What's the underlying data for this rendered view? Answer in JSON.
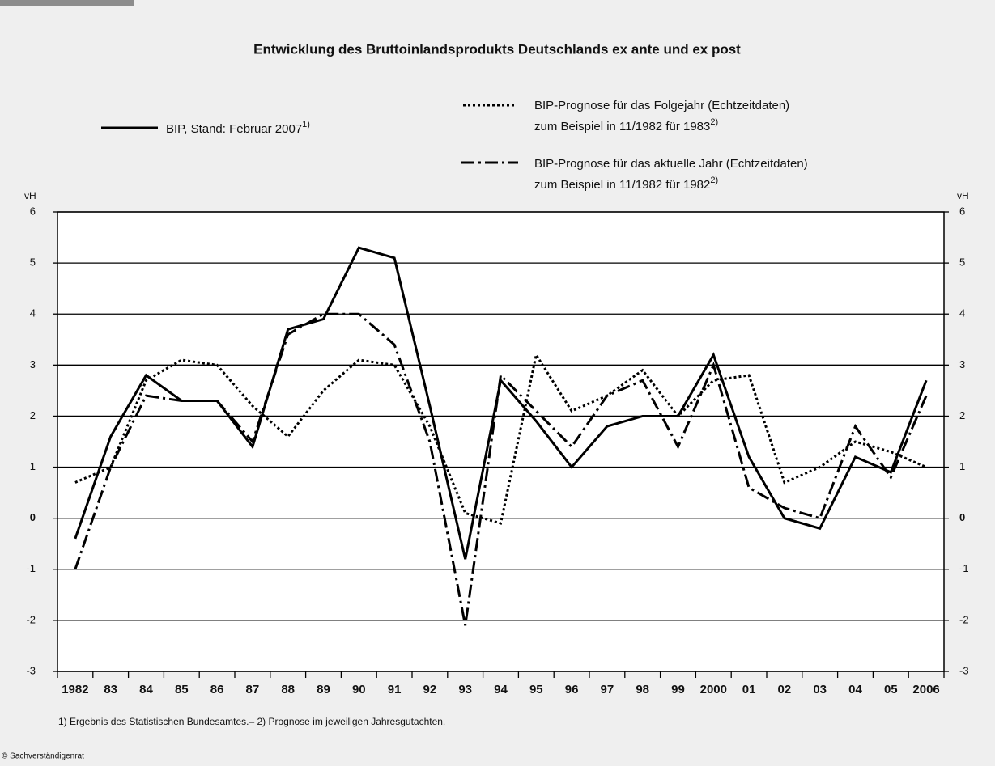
{
  "chart_data": {
    "type": "line",
    "title": "Entwicklung des Bruttoinlandsprodukts Deutschlands ex ante und ex post",
    "y_label": "vH",
    "y2_label": "vH",
    "categories": [
      "1982",
      "83",
      "84",
      "85",
      "86",
      "87",
      "88",
      "89",
      "90",
      "91",
      "92",
      "93",
      "94",
      "95",
      "96",
      "97",
      "98",
      "99",
      "2000",
      "01",
      "02",
      "03",
      "04",
      "05",
      "2006"
    ],
    "series": [
      {
        "name": "BIP, Stand: Februar 2007",
        "name_note": "1)",
        "color": "#000000",
        "style": "solid",
        "values": [
          -0.4,
          1.6,
          2.8,
          2.3,
          2.3,
          1.4,
          3.7,
          3.9,
          5.3,
          5.1,
          2.2,
          -0.8,
          2.7,
          1.9,
          1.0,
          1.8,
          2.0,
          2.0,
          3.2,
          1.2,
          0.0,
          -0.2,
          1.2,
          0.9,
          2.7
        ]
      },
      {
        "name": "BIP-Prognose für das Folgejahr (Echtzeitdaten)",
        "name_detail": "zum Beispiel in 11/1982 für 1983",
        "name_note": "2)",
        "color": "#000000",
        "style": "dotted",
        "values": [
          0.7,
          1.0,
          2.7,
          3.1,
          3.0,
          2.2,
          1.6,
          2.5,
          3.1,
          3.0,
          1.8,
          0.1,
          -0.1,
          3.2,
          2.1,
          2.4,
          2.9,
          2.0,
          2.7,
          2.8,
          0.7,
          1.0,
          1.5,
          1.3,
          1.0
        ]
      },
      {
        "name": "BIP-Prognose für das aktuelle Jahr (Echtzeitdaten)",
        "name_detail": "zum Beispiel in 11/1982 für 1982",
        "name_note": "2)",
        "color": "#000000",
        "style": "dashdot",
        "values": [
          -1.0,
          1.0,
          2.4,
          2.3,
          2.3,
          1.5,
          3.6,
          4.0,
          4.0,
          3.4,
          1.5,
          -2.1,
          2.8,
          2.1,
          1.4,
          2.4,
          2.7,
          1.4,
          3.0,
          0.6,
          0.2,
          0.0,
          1.8,
          0.8,
          2.4
        ]
      }
    ],
    "ylim": [
      -3,
      6
    ],
    "yticks": [
      -3,
      -2,
      -1,
      0,
      1,
      2,
      3,
      4,
      5,
      6
    ],
    "y2lim": [
      -3,
      6
    ],
    "y2ticks": [
      -3,
      -2,
      -1,
      0,
      1,
      2,
      3,
      4,
      5,
      6
    ],
    "grid": true,
    "footnote": "1) Ergebnis des Statistischen Bundesamtes.– 2) Prognose im jeweiligen Jahresgutachten.",
    "source": "© Sachverständigenrat"
  }
}
